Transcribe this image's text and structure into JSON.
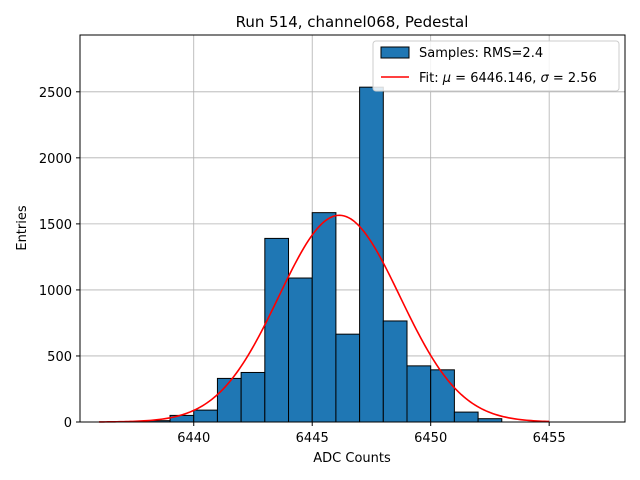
{
  "chart_data": {
    "type": "bar",
    "title": "Run 514, channel068, Pedestal",
    "xlabel": "ADC Counts",
    "ylabel": "Entries",
    "xlim": [
      6435.2,
      6458.2
    ],
    "ylim": [
      0,
      2930
    ],
    "grid": true,
    "legend_position": "top-right",
    "x_ticks": [
      6440,
      6445,
      6450,
      6455
    ],
    "x_tick_labels": [
      "6440",
      "6445",
      "6450",
      "6455"
    ],
    "y_ticks": [
      0,
      500,
      1000,
      1500,
      2000,
      2500
    ],
    "y_tick_labels": [
      "0",
      "500",
      "1000",
      "1500",
      "2000",
      "2500"
    ],
    "bar_color": "#1f77b4",
    "fit_color": "#ff0000",
    "series": [
      {
        "name": "Samples: RMS=2.4",
        "kind": "histogram",
        "bin_edges": [
          6438.0,
          6439.0,
          6440.0,
          6441.0,
          6442.0,
          6443.0,
          6444.0,
          6445.0,
          6446.0,
          6447.0,
          6448.0,
          6449.0,
          6450.0,
          6451.0,
          6452.0,
          6453.0
        ],
        "counts": [
          10,
          50,
          90,
          330,
          375,
          1390,
          1090,
          1585,
          665,
          2535,
          765,
          425,
          395,
          75,
          25
        ]
      },
      {
        "name": "Fit: μ = 6446.146, σ = 2.56",
        "legend_prefix": "Fit: ",
        "legend_mu_symbol": "μ",
        "legend_mu_rest": " = 6446.146, ",
        "legend_sigma_symbol": "σ",
        "legend_sigma_rest": " = 2.56",
        "kind": "gaussian",
        "mu": 6446.146,
        "sigma": 2.56,
        "amplitude": 1565,
        "x_range": [
          6436.0,
          6455.0
        ]
      }
    ]
  }
}
